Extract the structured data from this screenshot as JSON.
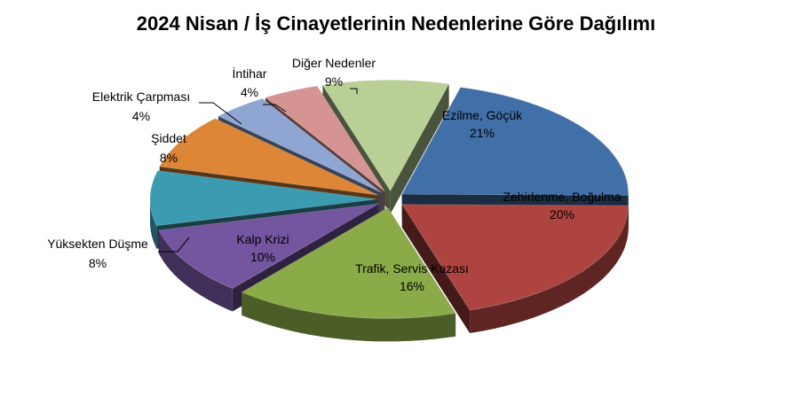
{
  "chart_data": {
    "type": "pie",
    "title": "2024 Nisan / İş Cinayetlerinin Nedenlerine Göre Dağılımı",
    "slices": [
      {
        "label": "Ezilme, Göçük",
        "value": 21,
        "value_label": "21%",
        "color": "#4170a8"
      },
      {
        "label": "Zehirlenme, Boğulma",
        "value": 20,
        "value_label": "20%",
        "color": "#ad4440"
      },
      {
        "label": "Trafik, Servis Kazası",
        "value": 16,
        "value_label": "16%",
        "color": "#8aab48"
      },
      {
        "label": "Kalp Krizi",
        "value": 10,
        "value_label": "10%",
        "color": "#7455a0"
      },
      {
        "label": "Yüksekten Düşme",
        "value": 8,
        "value_label": "8%",
        "color": "#3b9bb0"
      },
      {
        "label": "Şiddet",
        "value": 8,
        "value_label": "8%",
        "color": "#dd8637"
      },
      {
        "label": "Elektrik Çarpması",
        "value": 4,
        "value_label": "4%",
        "color": "#8fa6d3"
      },
      {
        "label": "İntihar",
        "value": 4,
        "value_label": "4%",
        "color": "#d59392"
      },
      {
        "label": "Diğer Nedenler",
        "value": 9,
        "value_label": "9%",
        "color": "#b9cf95"
      }
    ]
  }
}
